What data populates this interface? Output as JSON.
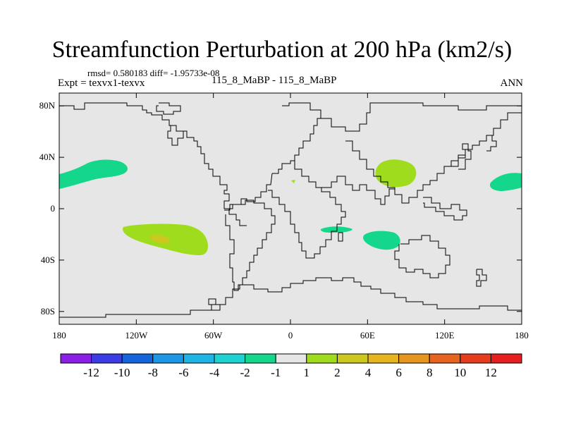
{
  "title": "Streamfunction Perturbation at 200 hPa (km2/s)",
  "stats": "rmsd= 0.580183 diff= -1.95733e-08",
  "left_label": "Expt = texvx1-texvx",
  "center_label": "115_8_MaBP - 115_8_MaBP",
  "right_label": "ANN",
  "map": {
    "projection": "cylindrical equidistant",
    "lon_range": [
      -180,
      180
    ],
    "lat_range": [
      -90,
      90
    ],
    "x_ticks": [
      {
        "lon": -180,
        "label": "180"
      },
      {
        "lon": -120,
        "label": "120W"
      },
      {
        "lon": -60,
        "label": "60W"
      },
      {
        "lon": 0,
        "label": "0"
      },
      {
        "lon": 60,
        "label": "60E"
      },
      {
        "lon": 120,
        "label": "120E"
      },
      {
        "lon": 180,
        "label": "180"
      }
    ],
    "y_ticks": [
      {
        "lat": 80,
        "label": "80N"
      },
      {
        "lat": 40,
        "label": "40N"
      },
      {
        "lat": 0,
        "label": "0"
      },
      {
        "lat": -40,
        "label": "40S"
      },
      {
        "lat": -80,
        "label": "80S"
      }
    ],
    "background_color": "#e6e6e6"
  },
  "colorbar": {
    "colors": [
      "#8c1ee6",
      "#3c3ce6",
      "#1464dc",
      "#1e96e6",
      "#1eb4e6",
      "#1ed2d2",
      "#14d78c",
      "#e6e6e6",
      "#a0dc1e",
      "#cdc81e",
      "#e6b41e",
      "#e6961e",
      "#e6641e",
      "#e63c1e",
      "#e61e1e"
    ],
    "labels": [
      "-12",
      "-10",
      "-8",
      "-6",
      "-4",
      "-2",
      "-1",
      "1",
      "2",
      "4",
      "6",
      "8",
      "10",
      "12"
    ]
  },
  "chart_data": {
    "type": "heatmap",
    "title": "Streamfunction Perturbation at 200 hPa (km2/s)",
    "levels": [
      -12,
      -10,
      -8,
      -6,
      -4,
      -2,
      -1,
      1,
      2,
      4,
      6,
      8,
      10,
      12
    ],
    "anomaly_regions": [
      {
        "name": "north-pacific-negative",
        "level_range": [
          -2,
          -1
        ],
        "center": {
          "lon": -150,
          "lat": 30
        }
      },
      {
        "name": "east-pacific-east-negative",
        "level_range": [
          -2,
          -1
        ],
        "center": {
          "lon": 172,
          "lat": 20
        }
      },
      {
        "name": "central-asia-positive",
        "level_range": [
          1,
          2
        ],
        "center": {
          "lon": 82,
          "lat": 27
        }
      },
      {
        "name": "south-pacific-positive",
        "level_range": [
          1,
          2
        ],
        "center": {
          "lon": -105,
          "lat": -25
        }
      },
      {
        "name": "south-pacific-positive-core",
        "level_range": [
          2,
          4
        ],
        "center": {
          "lon": -103,
          "lat": -24
        }
      },
      {
        "name": "south-indian-negative",
        "level_range": [
          -2,
          -1
        ],
        "center": {
          "lon": 72,
          "lat": -25
        }
      },
      {
        "name": "madagascar-negative",
        "level_range": [
          -2,
          -1
        ],
        "center": {
          "lon": 37,
          "lat": -17
        }
      },
      {
        "name": "mediterranean-positive-spot",
        "level_range": [
          1,
          2
        ],
        "center": {
          "lon": 2,
          "lat": 20
        }
      }
    ]
  }
}
